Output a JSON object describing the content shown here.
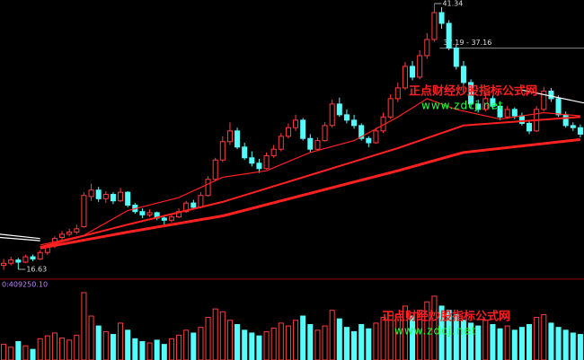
{
  "chart_data": {
    "type": "candlestick",
    "ylim": [
      15.8,
      41.67
    ],
    "xlim": [
      -0.5,
      79.5
    ],
    "up_color": "#ff3c3c",
    "down_color": "#54fcfc",
    "ohlc": [
      [
        17.0,
        17.6,
        16.6,
        17.2
      ],
      [
        17.2,
        17.8,
        17.0,
        17.5
      ],
      [
        17.5,
        17.7,
        16.63,
        17.3
      ],
      [
        17.3,
        18.0,
        17.2,
        17.8
      ],
      [
        17.8,
        18.0,
        17.4,
        17.6
      ],
      [
        17.6,
        18.4,
        17.5,
        18.2
      ],
      [
        18.2,
        19.0,
        18.0,
        18.8
      ],
      [
        18.8,
        19.7,
        18.6,
        19.5
      ],
      [
        19.6,
        20.2,
        19.4,
        19.9
      ],
      [
        19.9,
        20.4,
        19.7,
        20.1
      ],
      [
        20.1,
        20.8,
        19.9,
        20.4
      ],
      [
        20.6,
        23.8,
        20.5,
        23.5
      ],
      [
        23.4,
        24.6,
        23.0,
        24.0
      ],
      [
        24.0,
        24.3,
        22.9,
        23.2
      ],
      [
        23.2,
        23.9,
        22.8,
        23.6
      ],
      [
        23.6,
        23.8,
        22.7,
        23.0
      ],
      [
        23.0,
        24.2,
        22.9,
        23.8
      ],
      [
        23.8,
        23.9,
        22.4,
        22.6
      ],
      [
        22.6,
        22.8,
        21.8,
        22.0
      ],
      [
        22.0,
        22.3,
        21.4,
        21.7
      ],
      [
        21.7,
        22.2,
        21.5,
        21.9
      ],
      [
        21.9,
        22.0,
        21.2,
        21.4
      ],
      [
        21.4,
        21.6,
        20.8,
        21.2
      ],
      [
        21.2,
        21.8,
        21.0,
        21.5
      ],
      [
        21.5,
        22.3,
        21.4,
        22.0
      ],
      [
        22.0,
        23.0,
        21.9,
        22.8
      ],
      [
        22.8,
        23.1,
        22.2,
        22.4
      ],
      [
        22.4,
        23.8,
        22.3,
        23.5
      ],
      [
        23.5,
        25.3,
        23.4,
        25.0
      ],
      [
        25.0,
        27.0,
        24.8,
        26.8
      ],
      [
        26.8,
        29.0,
        26.6,
        28.5
      ],
      [
        28.5,
        30.3,
        28.2,
        29.5
      ],
      [
        29.5,
        29.8,
        27.8,
        28.0
      ],
      [
        28.0,
        28.4,
        26.8,
        27.0
      ],
      [
        27.0,
        27.6,
        26.2,
        26.5
      ],
      [
        26.5,
        26.9,
        25.6,
        26.0
      ],
      [
        26.0,
        27.5,
        25.9,
        27.2
      ],
      [
        27.2,
        28.2,
        27.0,
        27.8
      ],
      [
        27.8,
        29.3,
        27.6,
        29.0
      ],
      [
        29.0,
        30.2,
        28.8,
        29.8
      ],
      [
        29.8,
        31.0,
        29.5,
        30.5
      ],
      [
        30.5,
        30.7,
        28.6,
        28.8
      ],
      [
        28.8,
        29.2,
        27.5,
        27.8
      ],
      [
        27.8,
        28.9,
        27.6,
        28.6
      ],
      [
        28.6,
        30.3,
        28.5,
        30.0
      ],
      [
        30.0,
        32.4,
        29.8,
        32.0
      ],
      [
        32.0,
        32.6,
        30.8,
        31.0
      ],
      [
        31.0,
        31.5,
        30.2,
        30.5
      ],
      [
        30.5,
        31.0,
        29.7,
        30.0
      ],
      [
        30.0,
        30.2,
        28.6,
        28.8
      ],
      [
        28.8,
        29.0,
        28.0,
        28.4
      ],
      [
        28.4,
        29.8,
        28.3,
        29.5
      ],
      [
        29.5,
        31.2,
        29.3,
        30.8
      ],
      [
        30.8,
        32.9,
        30.6,
        32.5
      ],
      [
        32.5,
        34.0,
        32.2,
        33.5
      ],
      [
        33.5,
        35.9,
        33.3,
        35.5
      ],
      [
        35.5,
        36.0,
        34.2,
        34.5
      ],
      [
        34.5,
        37.0,
        34.3,
        36.5
      ],
      [
        36.5,
        38.6,
        36.2,
        38.0
      ],
      [
        38.0,
        41.34,
        37.8,
        40.5
      ],
      [
        40.5,
        41.0,
        39.0,
        39.5
      ],
      [
        39.5,
        39.8,
        37.0,
        37.2
      ],
      [
        37.2,
        37.5,
        35.2,
        35.5
      ],
      [
        35.5,
        36.0,
        33.8,
        34.0
      ],
      [
        34.0,
        34.3,
        31.6,
        32.0
      ],
      [
        32.0,
        32.4,
        31.2,
        31.5
      ],
      [
        31.5,
        33.0,
        31.3,
        32.5
      ],
      [
        32.5,
        32.8,
        31.5,
        31.8
      ],
      [
        31.8,
        32.0,
        30.5,
        30.8
      ],
      [
        30.8,
        31.8,
        30.6,
        31.5
      ],
      [
        31.5,
        31.7,
        30.6,
        30.9
      ],
      [
        30.9,
        31.2,
        30.0,
        30.2
      ],
      [
        30.2,
        30.5,
        29.2,
        29.5
      ],
      [
        29.5,
        31.8,
        29.4,
        31.5
      ],
      [
        31.5,
        33.6,
        31.3,
        33.2
      ],
      [
        33.2,
        33.5,
        32.2,
        32.5
      ],
      [
        32.5,
        32.8,
        30.8,
        31.0
      ],
      [
        31.0,
        31.3,
        29.8,
        30.0
      ],
      [
        30.0,
        30.3,
        29.5,
        29.8
      ],
      [
        29.8,
        30.1,
        28.9,
        29.2
      ]
    ],
    "lines": [
      {
        "color": "#ff2020",
        "weight": "thin",
        "x": [
          5,
          11,
          17,
          24,
          30,
          36,
          42,
          48,
          54,
          58,
          62,
          68,
          74,
          79
        ],
        "values": [
          18.9,
          19.8,
          22.1,
          23.3,
          25.2,
          25.8,
          27.5,
          28.6,
          30.8,
          32.5,
          31.5,
          30.6,
          31.2,
          30.9
        ]
      },
      {
        "color": "#ff2020",
        "weight": "medium",
        "x": [
          5,
          17,
          30,
          42,
          54,
          63,
          79
        ],
        "values": [
          18.7,
          20.8,
          22.9,
          25.4,
          27.9,
          30.0,
          30.8
        ]
      },
      {
        "color": "#ff2020",
        "weight": "thick",
        "x": [
          5,
          17,
          30,
          42,
          54,
          63,
          79
        ],
        "values": [
          18.6,
          20.1,
          21.6,
          23.7,
          25.8,
          27.5,
          28.7
        ]
      },
      {
        "color": "#ffffff",
        "weight": "thin",
        "x": [
          -0.5,
          5
        ],
        "values": [
          19.9,
          19.5
        ]
      },
      {
        "color": "#ffffff",
        "weight": "thin",
        "x": [
          -0.5,
          5
        ],
        "values": [
          19.6,
          19.3
        ]
      },
      {
        "color": "#ffffff",
        "weight": "thin",
        "x": [
          71,
          79.5
        ],
        "values": [
          33.3,
          32.1
        ]
      }
    ],
    "annotations": [
      {
        "text": "41.34",
        "value": 41.34
      },
      {
        "text": "16.63",
        "value": 16.63
      }
    ],
    "level": {
      "value": 37.19,
      "label": "37.19 - 37.16"
    },
    "volume": {
      "label": "0:409250.10",
      "ylim": [
        0,
        1000000
      ],
      "values": [
        220000,
        180000,
        260000,
        200000,
        150000,
        300000,
        340000,
        380000,
        310000,
        280000,
        350000,
        950000,
        620000,
        480000,
        400000,
        360000,
        520000,
        420000,
        300000,
        260000,
        240000,
        280000,
        220000,
        300000,
        350000,
        420000,
        380000,
        460000,
        600000,
        720000,
        680000,
        560000,
        500000,
        420000,
        380000,
        340000,
        400000,
        450000,
        520000,
        480000,
        560000,
        620000,
        500000,
        420000,
        480000,
        700000,
        580000,
        460000,
        400000,
        500000,
        440000,
        520000,
        600000,
        680000,
        640000,
        760000,
        620000,
        700000,
        820000,
        900000,
        760000,
        700000,
        640000,
        560000,
        520000,
        480000,
        560000,
        500000,
        440000,
        480000,
        420000,
        460000,
        500000,
        600000,
        640000,
        520000,
        460000,
        420000,
        380000,
        360000
      ]
    },
    "watermarks": [
      {
        "title": "正点财经炒股指标公式网",
        "url": "www.zdcj.net"
      },
      {
        "title": "正点财经炒股指标公式网",
        "url": "www.zdcj.net"
      }
    ]
  }
}
